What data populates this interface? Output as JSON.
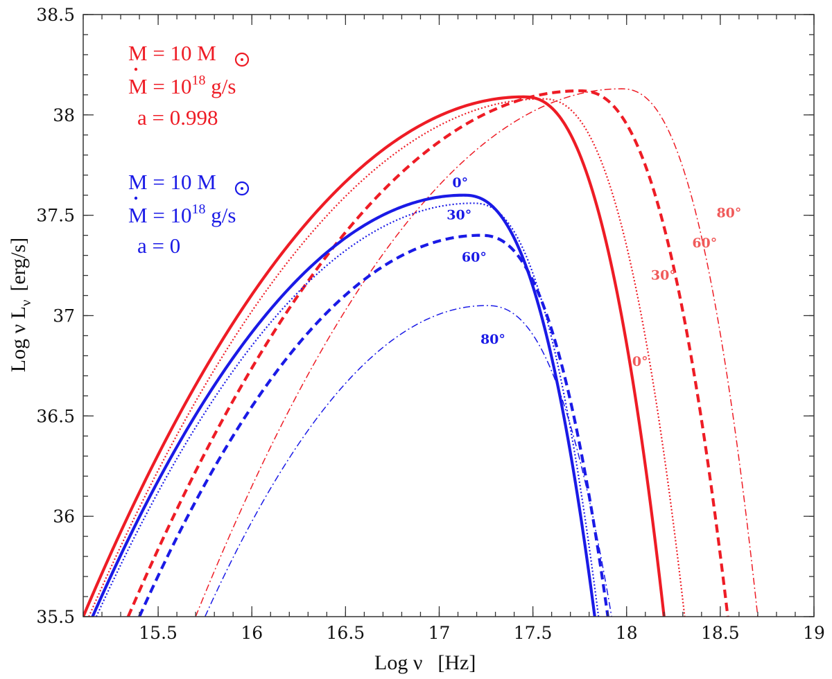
{
  "chart_data": {
    "type": "line",
    "title": "",
    "xlabel": {
      "main": "Log ν",
      "unit": "[Hz]"
    },
    "ylabel": {
      "main": "Log ν L",
      "sub": "ν",
      "unit": "[erg/s]"
    },
    "xlim": [
      15.1,
      19.0
    ],
    "ylim": [
      35.5,
      38.5
    ],
    "xticks": [
      15.5,
      16,
      16.5,
      17,
      17.5,
      18,
      18.5,
      19
    ],
    "yticks": [
      35.5,
      36,
      36.5,
      37,
      37.5,
      38,
      38.5
    ],
    "xtick_labels": [
      "15.5",
      "16",
      "16.5",
      "17",
      "17.5",
      "18",
      "18.5",
      "19"
    ],
    "ytick_labels": [
      "35.5",
      "36",
      "36.5",
      "37",
      "37.5",
      "38",
      "38.5"
    ],
    "colors": {
      "red": "#ee1c25",
      "red_light": "#f05a5a",
      "blue": "#1a1ae6"
    },
    "legend": {
      "red": {
        "mass": "M = 10 M",
        "mdot": "M = 10",
        "mdot_exp": "18",
        "mdot_unit": " g/s",
        "spin": "a = 0.998"
      },
      "blue": {
        "mass": "M = 10 M",
        "mdot": "M = 10",
        "mdot_exp": "18",
        "mdot_unit": " g/s",
        "spin": "a = 0"
      }
    },
    "series": [
      {
        "name": "a=0.998, 0°",
        "group": "red",
        "style": "solid",
        "x_start": 15.1,
        "x_peak": 17.45,
        "y_peak": 38.09,
        "x_end": 18.2
      },
      {
        "name": "a=0.998, 30°",
        "group": "red",
        "style": "dotted",
        "x_start": 15.13,
        "x_peak": 17.55,
        "y_peak": 38.08,
        "x_end": 18.31
      },
      {
        "name": "a=0.998, 60°",
        "group": "red",
        "style": "dashed",
        "x_start": 15.34,
        "x_peak": 17.75,
        "y_peak": 38.12,
        "x_end": 18.54
      },
      {
        "name": "a=0.998, 80°",
        "group": "red",
        "style": "dashdot",
        "x_start": 15.7,
        "x_peak": 17.97,
        "y_peak": 38.13,
        "x_end": 18.7
      },
      {
        "name": "a=0, 0°",
        "group": "blue",
        "style": "solid",
        "x_start": 15.15,
        "x_peak": 17.13,
        "y_peak": 37.6,
        "x_end": 17.83
      },
      {
        "name": "a=0, 30°",
        "group": "blue",
        "style": "dotted",
        "x_start": 15.17,
        "x_peak": 17.18,
        "y_peak": 37.56,
        "x_end": 17.85
      },
      {
        "name": "a=0, 60°",
        "group": "blue",
        "style": "dashed",
        "x_start": 15.4,
        "x_peak": 17.22,
        "y_peak": 37.4,
        "x_end": 17.9
      },
      {
        "name": "a=0, 80°",
        "group": "blue",
        "style": "dashdot",
        "x_start": 15.75,
        "x_peak": 17.25,
        "y_peak": 37.05,
        "x_end": 17.92
      }
    ],
    "annotations": [
      {
        "text": "0°",
        "group": "red",
        "x": 18.03,
        "y": 36.75
      },
      {
        "text": "30°",
        "group": "red",
        "x": 18.13,
        "y": 37.18
      },
      {
        "text": "60°",
        "group": "red",
        "x": 18.35,
        "y": 37.34
      },
      {
        "text": "80°",
        "group": "red",
        "x": 18.48,
        "y": 37.49
      },
      {
        "text": "0°",
        "group": "blue",
        "x": 17.07,
        "y": 37.64
      },
      {
        "text": "30°",
        "group": "blue",
        "x": 17.04,
        "y": 37.48
      },
      {
        "text": "60°",
        "group": "blue",
        "x": 17.12,
        "y": 37.27
      },
      {
        "text": "80°",
        "group": "blue",
        "x": 17.22,
        "y": 36.86
      }
    ]
  }
}
